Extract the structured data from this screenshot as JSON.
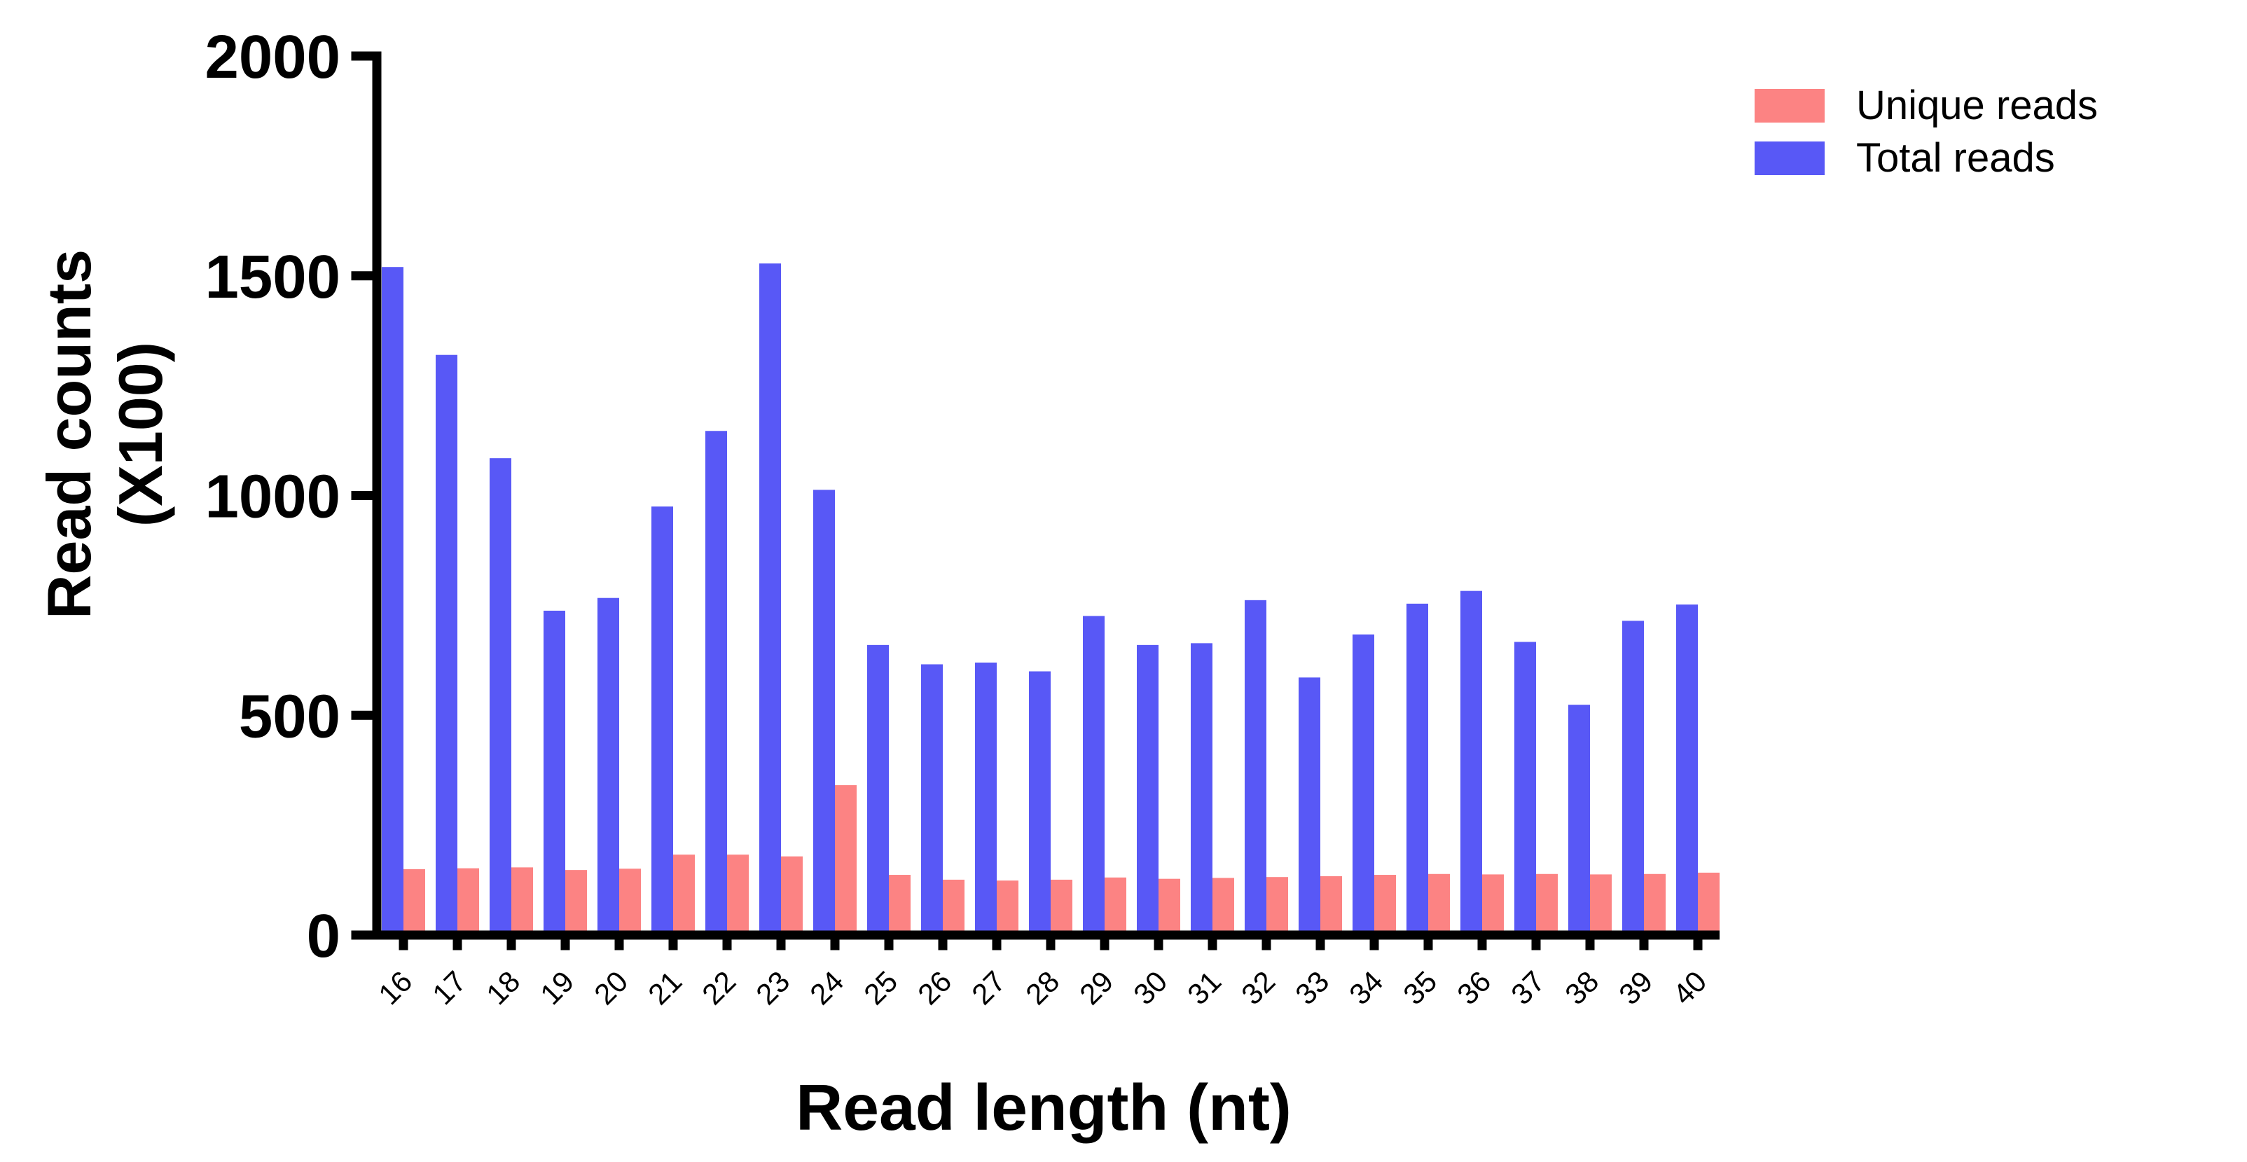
{
  "chart_data": {
    "type": "bar",
    "title": "",
    "xlabel": "Read length (nt)",
    "ylabel_lines": [
      "Read counts",
      "(X100)"
    ],
    "categories": [
      16,
      17,
      18,
      19,
      20,
      21,
      22,
      23,
      24,
      25,
      26,
      27,
      28,
      29,
      30,
      31,
      32,
      33,
      34,
      35,
      36,
      37,
      38,
      39,
      40
    ],
    "series": [
      {
        "name": "Unique reads",
        "color": "#FC8383",
        "values": [
          150,
          152,
          154,
          148,
          151,
          183,
          183,
          179,
          341,
          137,
          126,
          124,
          126,
          131,
          128,
          130,
          132,
          134,
          137,
          139,
          138,
          139,
          138,
          139,
          142
        ]
      },
      {
        "name": "Total reads",
        "color": "#5858F6",
        "values": [
          1520,
          1320,
          1085,
          738,
          767,
          975,
          1147,
          1528,
          1013,
          660,
          616,
          620,
          600,
          726,
          660,
          664,
          762,
          586,
          684,
          754,
          783,
          667,
          524,
          715,
          752
        ]
      }
    ],
    "draw_order": [
      "Total reads",
      "Unique reads"
    ],
    "ylim": [
      0,
      2000
    ],
    "yticks": [
      0,
      500,
      1000,
      1500,
      2000
    ],
    "grid": false,
    "legend_position": "top-right",
    "axis_color": "#000000"
  },
  "legend": {
    "items": [
      {
        "label": "Unique reads",
        "color": "#FC8383"
      },
      {
        "label": "Total reads",
        "color": "#5858F6"
      }
    ]
  }
}
